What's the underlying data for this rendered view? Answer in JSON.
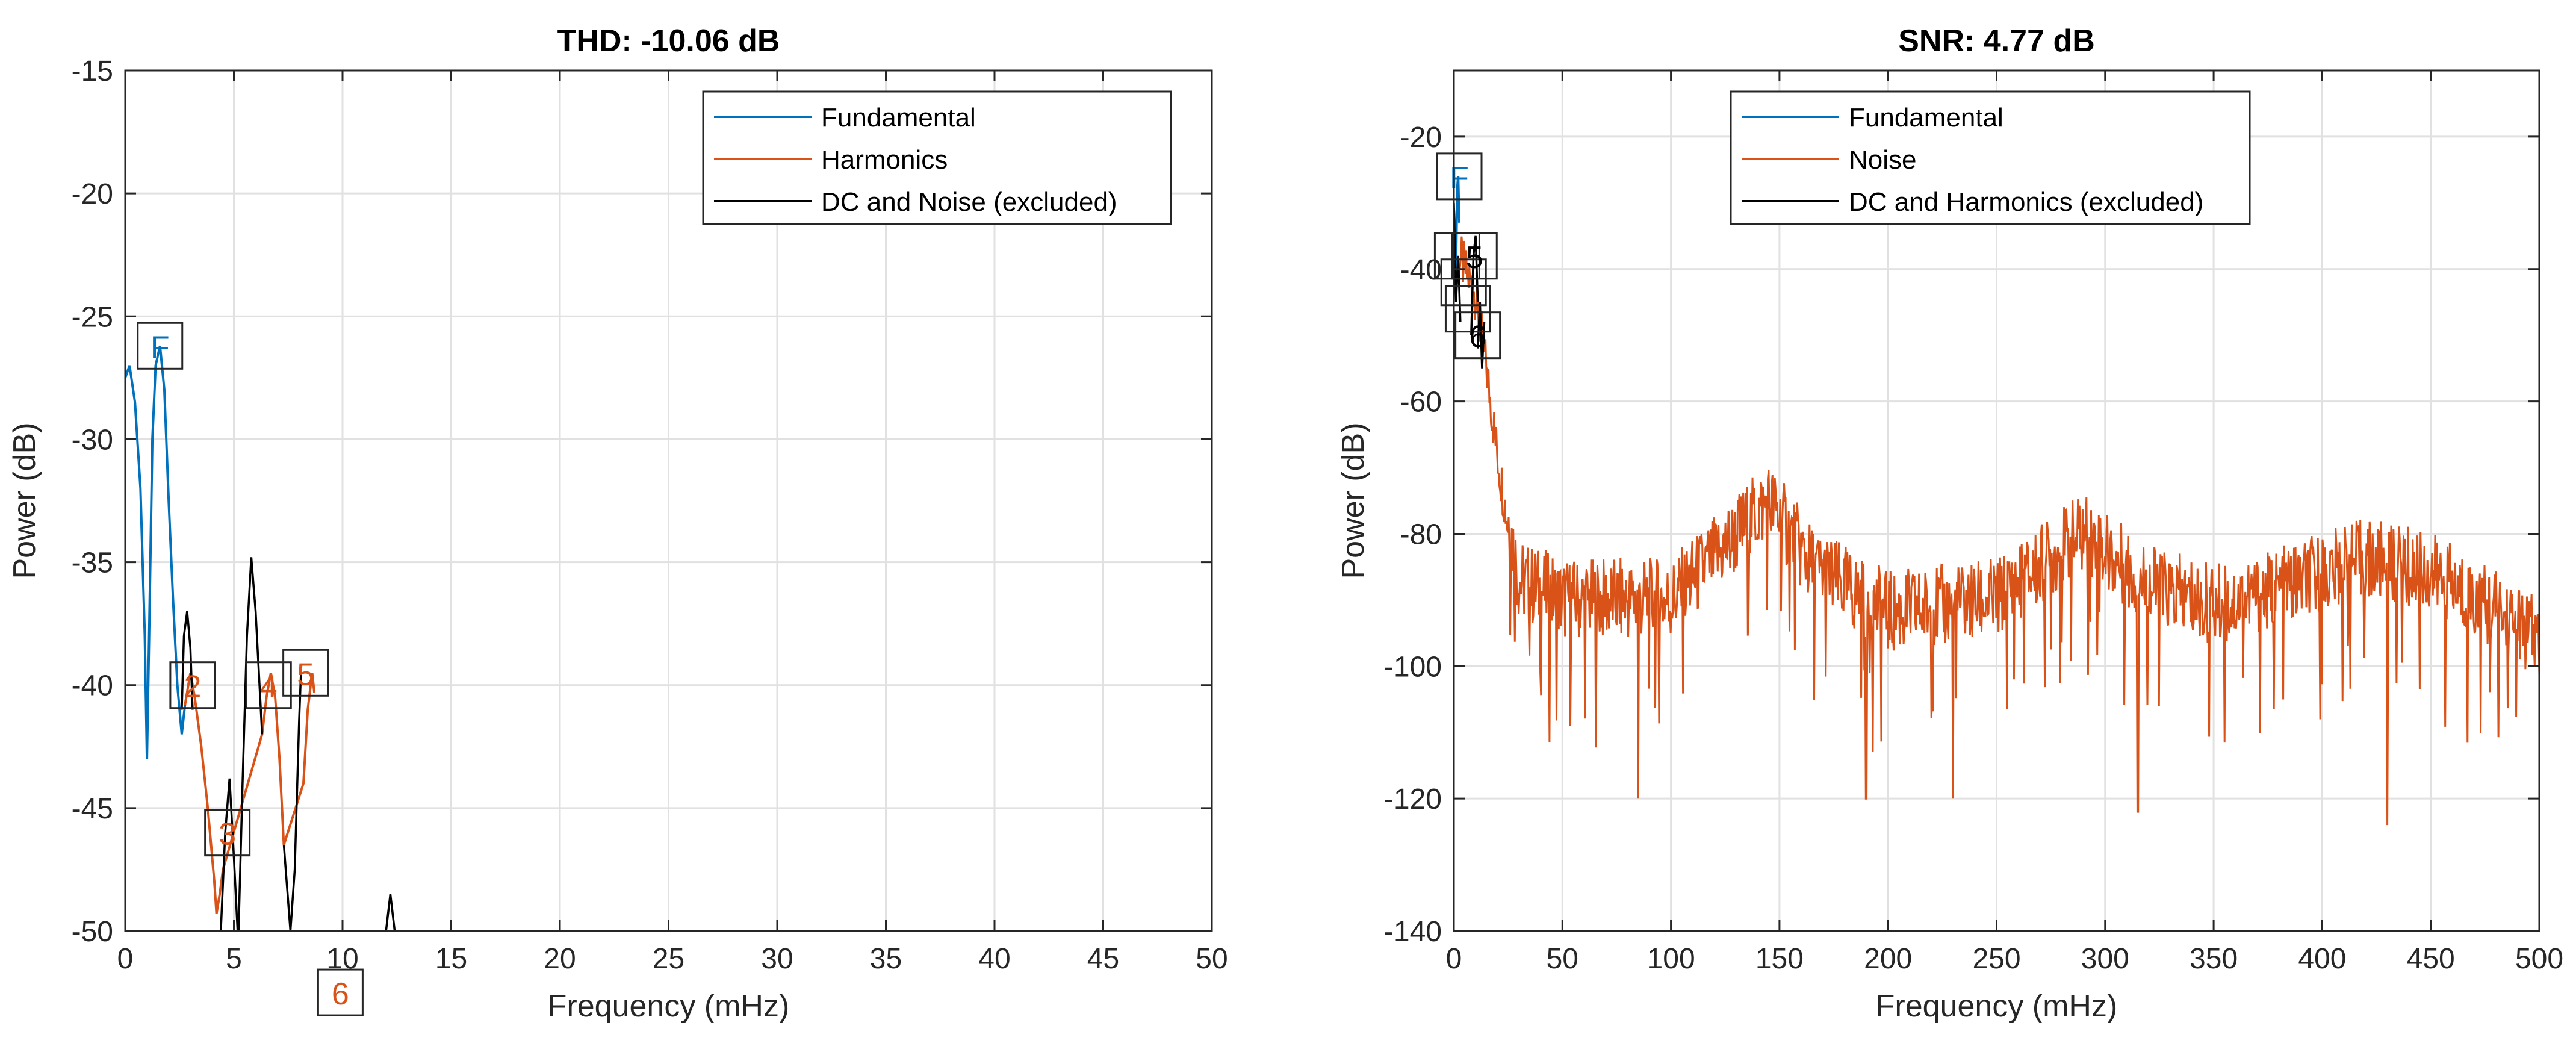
{
  "colors": {
    "fundamental": "#0072BD",
    "harmonics": "#D95319",
    "excluded": "#000000",
    "grid": "#e1e1e1",
    "axis": "#262626"
  },
  "chart_data": [
    {
      "type": "line",
      "title": "THD: -10.06 dB",
      "xlabel": "Frequency (mHz)",
      "ylabel": "Power (dB)",
      "xlim": [
        0,
        50
      ],
      "ylim": [
        -50,
        -15
      ],
      "xticks": [
        0,
        5,
        10,
        15,
        20,
        25,
        30,
        35,
        40,
        45,
        50
      ],
      "xtick_labels": [
        "0",
        "5",
        "10",
        "15",
        "20",
        "25",
        "30",
        "35",
        "40",
        "45",
        "50"
      ],
      "yticks": [
        -50,
        -45,
        -40,
        -35,
        -30,
        -25,
        -20,
        -15
      ],
      "ytick_labels": [
        "-50",
        "-45",
        "-40",
        "-35",
        "-30",
        "-25",
        "-20",
        "-15"
      ],
      "grid": true,
      "legend_position": "top-right",
      "legend": [
        "Fundamental",
        "Harmonics",
        "DC and Noise (excluded)"
      ],
      "series": [
        {
          "name": "Fundamental",
          "color_key": "fundamental",
          "x": [
            0,
            0.2,
            0.45,
            0.7,
            0.9,
            1.0,
            1.1,
            1.25,
            1.4,
            1.6,
            1.8,
            2.0,
            2.2,
            2.4,
            2.6,
            2.75
          ],
          "y": [
            -27.5,
            -27.0,
            -28.5,
            -32.0,
            -38.0,
            -43.0,
            -38.0,
            -30.0,
            -27.0,
            -26.2,
            -28.0,
            -32.5,
            -36.5,
            -40.0,
            -42.0,
            -40.8
          ]
        },
        {
          "name": "Harmonics",
          "color_key": "harmonics",
          "x": [
            2.75,
            3.0,
            3.2,
            3.5,
            3.8,
            4.0,
            4.1,
            4.2,
            4.35,
            4.5,
            6.3,
            6.5,
            6.7,
            6.9,
            7.1,
            7.3,
            8.2,
            8.4,
            8.6,
            8.7
          ],
          "y": [
            -40.8,
            -39.5,
            -40.5,
            -42.5,
            -45.0,
            -47.0,
            -48.0,
            -49.3,
            -48.5,
            -47.5,
            -42.0,
            -40.5,
            -39.5,
            -40.5,
            -43.0,
            -46.5,
            -44.0,
            -41.0,
            -39.5,
            -40.3
          ]
        },
        {
          "name": "DC and Noise",
          "color_key": "excluded",
          "segments": [
            {
              "x": [
                2.6,
                2.7,
                2.85,
                3.0,
                3.1
              ],
              "y": [
                -41.0,
                -38.0,
                -37.0,
                -38.5,
                -41.0
              ]
            },
            {
              "x": [
                4.4,
                4.6,
                4.8,
                5.0,
                5.2,
                5.4,
                5.6,
                5.8,
                6.0,
                6.3
              ],
              "y": [
                -50.0,
                -46.0,
                -43.8,
                -47.0,
                -50.5,
                -44.0,
                -38.0,
                -34.8,
                -37.0,
                -42.0
              ]
            },
            {
              "x": [
                7.3,
                7.6,
                7.8,
                8.0,
                8.1
              ],
              "y": [
                -46.5,
                -50.0,
                -47.5,
                -41.5,
                -39.2
              ]
            },
            {
              "x": [
                12.0,
                12.2,
                12.4
              ],
              "y": [
                -50.0,
                -48.5,
                -50.0
              ]
            }
          ]
        }
      ],
      "annotations": [
        {
          "label": "F",
          "x": 1.6,
          "y": -26.2,
          "color_key": "fundamental"
        },
        {
          "label": "2",
          "x": 3.1,
          "y": -40.0,
          "color_key": "harmonics"
        },
        {
          "label": "3",
          "x": 4.7,
          "y": -46.0,
          "color_key": "harmonics"
        },
        {
          "label": "4",
          "x": 6.6,
          "y": -40.0,
          "color_key": "harmonics"
        },
        {
          "label": "5",
          "x": 8.3,
          "y": -39.5,
          "color_key": "harmonics"
        },
        {
          "label": "6",
          "x": 9.9,
          "y": -52.5,
          "color_key": "harmonics"
        }
      ]
    },
    {
      "type": "line",
      "title": "SNR:   4.77 dB",
      "xlabel": "Frequency (mHz)",
      "ylabel": "Power (dB)",
      "xlim": [
        0,
        500
      ],
      "ylim": [
        -140,
        -10
      ],
      "xticks": [
        0,
        50,
        100,
        150,
        200,
        250,
        300,
        350,
        400,
        450,
        500
      ],
      "xtick_labels": [
        "0",
        "50",
        "100",
        "150",
        "200",
        "250",
        "300",
        "350",
        "400",
        "450",
        "500"
      ],
      "yticks": [
        -140,
        -120,
        -100,
        -80,
        -60,
        -40,
        -20
      ],
      "ytick_labels": [
        "-140",
        "-120",
        "-100",
        "-80",
        "-60",
        "-40",
        "-20"
      ],
      "grid": true,
      "legend_position": "top-right",
      "legend": [
        "Fundamental",
        "Noise",
        "DC and Harmonics (excluded)"
      ],
      "series": [
        {
          "name": "Fundamental",
          "color_key": "fundamental",
          "x": [
            0,
            0.5,
            1.0,
            1.5,
            2.0,
            2.5
          ],
          "y": [
            -31,
            -35,
            -40,
            -28,
            -26,
            -33
          ]
        },
        {
          "name": "Noise",
          "color_key": "harmonics",
          "envelope": [
            [
              0,
              -36
            ],
            [
              5,
              -40
            ],
            [
              10,
              -44
            ],
            [
              15,
              -55
            ],
            [
              20,
              -68
            ],
            [
              25,
              -79
            ],
            [
              30,
              -89
            ],
            [
              50,
              -92
            ],
            [
              100,
              -92
            ],
            [
              125,
              -84
            ],
            [
              145,
              -77
            ],
            [
              165,
              -87
            ],
            [
              200,
              -94
            ],
            [
              250,
              -92
            ],
            [
              290,
              -82
            ],
            [
              320,
              -90
            ],
            [
              350,
              -93
            ],
            [
              375,
              -91
            ],
            [
              420,
              -86
            ],
            [
              450,
              -88
            ],
            [
              500,
              -98
            ]
          ],
          "dips": [
            [
              85,
              -120
            ],
            [
              190,
              -120
            ],
            [
              230,
              -120
            ],
            [
              315,
              -122
            ],
            [
              430,
              -124
            ]
          ],
          "start_freq": 2.5,
          "end_freq": 500
        },
        {
          "name": "DC and Harmonics",
          "color_key": "excluded",
          "segments": [
            {
              "x": [
                0,
                1,
                2,
                3
              ],
              "y": [
                -30,
                -45,
                -38,
                -48
              ]
            },
            {
              "x": [
                8,
                9,
                10,
                11
              ],
              "y": [
                -50,
                -38,
                -35,
                -45
              ]
            },
            {
              "x": [
                11,
                12,
                13,
                14
              ],
              "y": [
                -52,
                -45,
                -55,
                -48
              ]
            }
          ]
        }
      ],
      "annotations": [
        {
          "label": "F",
          "x": 2.5,
          "y": -26,
          "color_key": "fundamental"
        },
        {
          "label": "5",
          "x": 9.5,
          "y": -38,
          "color_key": "excluded"
        },
        {
          "label": "6",
          "x": 11,
          "y": -50,
          "color_key": "excluded"
        }
      ],
      "annotation_boxes_unlabeled": [
        {
          "x": 1.5,
          "y": -38
        },
        {
          "x": 4.5,
          "y": -42
        },
        {
          "x": 6.5,
          "y": -46
        }
      ]
    }
  ]
}
